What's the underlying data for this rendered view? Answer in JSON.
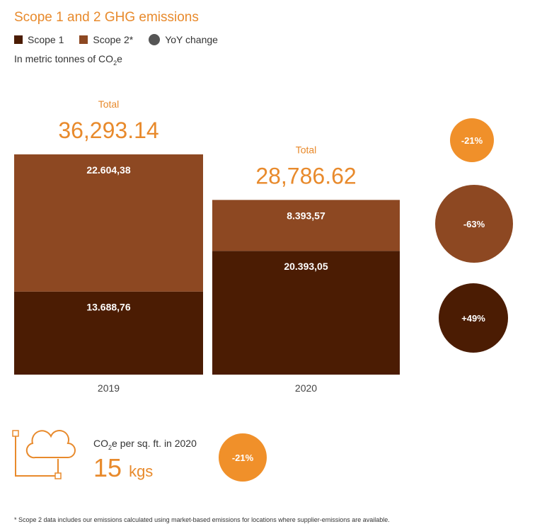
{
  "title": "Scope 1 and 2 GHG emissions",
  "legend": [
    {
      "label": "Scope 1",
      "color": "#4b1c03",
      "shape": "square"
    },
    {
      "label": "Scope 2*",
      "color": "#8d4822",
      "shape": "square"
    },
    {
      "label": "YoY change",
      "color": "#555555",
      "shape": "circle"
    }
  ],
  "unit": {
    "prefix": "In metric tonnes of CO",
    "sub": "2",
    "suffix": "e"
  },
  "chart_data": {
    "type": "bar",
    "stacked": true,
    "title": "Scope 1 and 2 GHG emissions",
    "ylabel": "In metric tonnes of CO2e",
    "categories": [
      "2019",
      "2020"
    ],
    "series": [
      {
        "name": "Scope 1",
        "color": "#4b1c03",
        "values": [
          13688.76,
          20393.05
        ],
        "labels": [
          "13.688,76",
          "20.393,05"
        ]
      },
      {
        "name": "Scope 2*",
        "color": "#8d4822",
        "values": [
          22604.38,
          8393.57
        ],
        "labels": [
          "22.604,38",
          "8.393,57"
        ]
      }
    ],
    "totals": [
      {
        "label": "Total",
        "value": "36,293.14"
      },
      {
        "label": "Total",
        "value": "28,786.62"
      }
    ],
    "yoy_change": [
      {
        "series": "Total",
        "label": "-21%",
        "color": "#f0902a"
      },
      {
        "series": "Scope 2*",
        "label": "-63%",
        "color": "#8d4822"
      },
      {
        "series": "Scope 1",
        "label": "+49%",
        "color": "#4b1c03"
      }
    ]
  },
  "intensity": {
    "label_prefix": "CO",
    "label_sub": "2",
    "label_suffix": "e per sq. ft. in 2020",
    "value": "15",
    "unit": "kgs",
    "change": "-21%",
    "change_color": "#f0902a",
    "icon": "cloud-icon"
  },
  "footnote": "* Scope 2 data includes our emissions calculated using market-based emissions for locations where supplier-emissions are available."
}
